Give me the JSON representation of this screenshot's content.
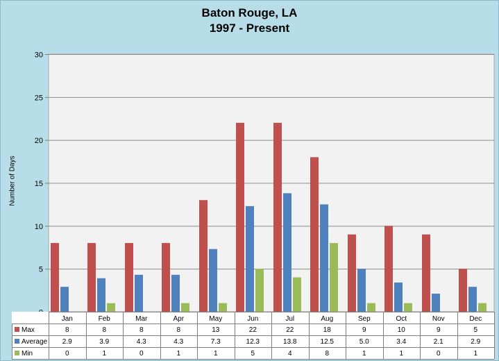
{
  "chart_data": {
    "type": "bar",
    "title": "Baton Rouge, LA",
    "subtitle": "1997 - Present",
    "xlabel": "",
    "ylabel": "Number of Days",
    "ylim": [
      0,
      30
    ],
    "yticks": [
      0,
      5,
      10,
      15,
      20,
      25,
      30
    ],
    "grid": true,
    "legend": "table-bottom",
    "categories": [
      "Jan",
      "Feb",
      "Mar",
      "Apr",
      "May",
      "Jun",
      "Jul",
      "Aug",
      "Sep",
      "Oct",
      "Nov",
      "Dec"
    ],
    "series": [
      {
        "name": "Max",
        "color": "#c0504d",
        "values": [
          8,
          8,
          8,
          8,
          13,
          22,
          22,
          18,
          9,
          10,
          9,
          5
        ],
        "labels": [
          "8",
          "8",
          "8",
          "8",
          "13",
          "22",
          "22",
          "18",
          "9",
          "10",
          "9",
          "5"
        ]
      },
      {
        "name": "Average",
        "color": "#4f81bd",
        "values": [
          2.9,
          3.9,
          4.3,
          4.3,
          7.3,
          12.3,
          13.8,
          12.5,
          5.0,
          3.4,
          2.1,
          2.9
        ],
        "labels": [
          "2.9",
          "3.9",
          "4.3",
          "4.3",
          "7.3",
          "12.3",
          "13.8",
          "12.5",
          "5.0",
          "3.4",
          "2.1",
          "2.9"
        ]
      },
      {
        "name": "Min",
        "color": "#9bbb59",
        "values": [
          0,
          1,
          0,
          1,
          1,
          5,
          4,
          8,
          1,
          1,
          0,
          1
        ],
        "labels": [
          "0",
          "1",
          "0",
          "1",
          "1",
          "5",
          "4",
          "8",
          "1",
          "1",
          "0",
          "1"
        ]
      }
    ]
  }
}
